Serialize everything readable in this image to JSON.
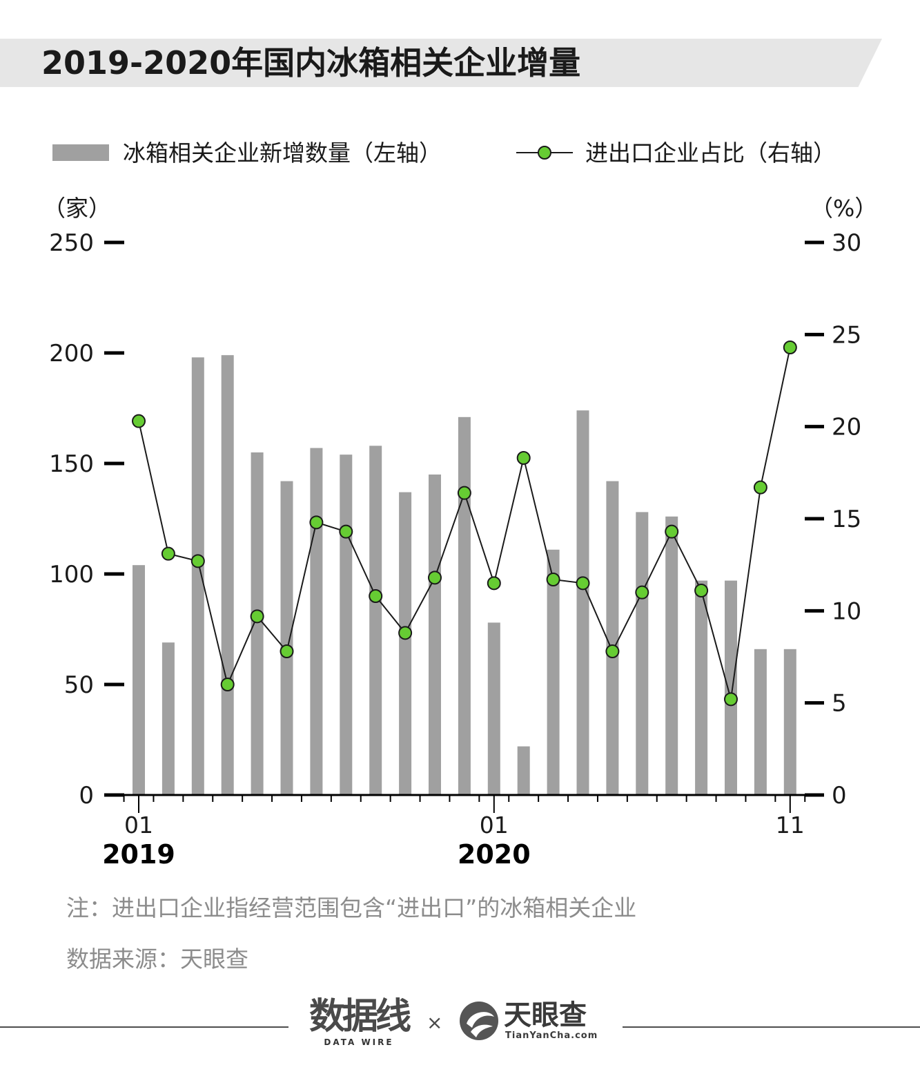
{
  "title": "2019-2020年国内冰箱相关企业增量",
  "legend": {
    "bar_label": "冰箱相关企业新增数量（左轴）",
    "line_label": "进出口企业占比（右轴）"
  },
  "axis": {
    "left_unit": "（家）",
    "right_unit": "（%）"
  },
  "chart_data": {
    "type": "bar",
    "x": [
      "2019-01",
      "2019-02",
      "2019-03",
      "2019-04",
      "2019-05",
      "2019-06",
      "2019-07",
      "2019-08",
      "2019-09",
      "2019-10",
      "2019-11",
      "2019-12",
      "2020-01",
      "2020-02",
      "2020-03",
      "2020-04",
      "2020-05",
      "2020-06",
      "2020-07",
      "2020-08",
      "2020-09",
      "2020-10",
      "2020-11"
    ],
    "x_tick_labels": [
      {
        "index": 0,
        "month": "01",
        "year": "2019"
      },
      {
        "index": 12,
        "month": "01",
        "year": "2020"
      },
      {
        "index": 22,
        "month": "11",
        "year": ""
      }
    ],
    "series": [
      {
        "name": "冰箱相关企业新增数量（左轴）",
        "type": "bar",
        "axis": "left",
        "color": "#a0a0a0",
        "values": [
          104,
          69,
          198,
          199,
          155,
          142,
          157,
          154,
          158,
          137,
          145,
          171,
          78,
          22,
          111,
          174,
          142,
          128,
          126,
          97,
          97,
          66,
          66
        ]
      },
      {
        "name": "进出口企业占比（右轴）",
        "type": "line",
        "axis": "right",
        "color": "#66cc33",
        "values": [
          20.3,
          13.1,
          12.7,
          6.0,
          9.7,
          7.8,
          14.8,
          14.3,
          10.8,
          8.8,
          11.8,
          16.4,
          11.5,
          18.3,
          11.7,
          11.5,
          7.8,
          11.0,
          14.3,
          11.1,
          5.2,
          16.7,
          24.3
        ]
      }
    ],
    "left_axis": {
      "ylim": [
        0,
        250
      ],
      "ticks": [
        0,
        50,
        100,
        150,
        200,
        250
      ]
    },
    "right_axis": {
      "ylim": [
        0,
        30
      ],
      "ticks": [
        0,
        5,
        10,
        15,
        20,
        25,
        30
      ]
    },
    "grid": false,
    "legend_position": "top"
  },
  "footnote": "注：进出口企业指经营范围包含“进出口”的冰箱相关企业",
  "source": "数据来源：天眼查",
  "brands": {
    "datawire_mark": "数据线",
    "datawire_sub": "DATA WIRE",
    "separator": "×",
    "tianyancha_name": "天眼查",
    "tianyancha_url": "TianYanCha.com"
  }
}
